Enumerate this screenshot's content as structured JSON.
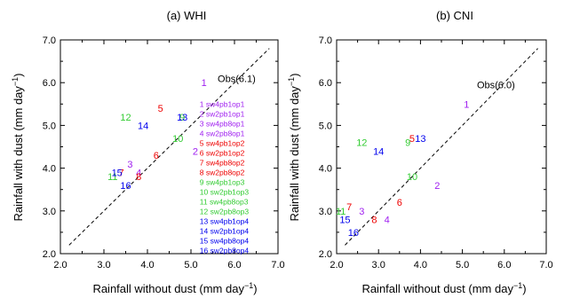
{
  "colors": {
    "purple": "#a020f0",
    "red": "#ee0000",
    "green": "#33cc33",
    "blue": "#0000ee"
  },
  "chart_data": [
    {
      "type": "scatter",
      "title": "(a) WHI",
      "xlabel_main": "Rainfall without dust (mm day",
      "ylabel_main": "Rainfall with dust (mm day",
      "unit_exponent": "−1",
      "unit_close": ")",
      "xlim": [
        2.0,
        7.0
      ],
      "ylim": [
        2.0,
        7.0
      ],
      "xticks": [
        "2.0",
        "3.0",
        "4.0",
        "5.0",
        "6.0",
        "7.0"
      ],
      "yticks": [
        "2.0",
        "3.0",
        "4.0",
        "5.0",
        "6.0",
        "7.0"
      ],
      "obs_label": "Obs(6.1)",
      "obs_line": {
        "x": [
          2.2,
          6.8
        ],
        "y": [
          2.2,
          6.8
        ]
      },
      "legend": [
        {
          "label": "1 sw4pb1op1",
          "color": "purple"
        },
        {
          "label": "2 sw2pb1op1",
          "color": "purple"
        },
        {
          "label": "3 sw4pb8op1",
          "color": "purple"
        },
        {
          "label": "4 sw2pb8op1",
          "color": "purple"
        },
        {
          "label": "5 sw4pb1op2",
          "color": "red"
        },
        {
          "label": "6 sw2pb1op2",
          "color": "red"
        },
        {
          "label": "7 sw4pb8op2",
          "color": "red"
        },
        {
          "label": "8 sw2pb8op2",
          "color": "red"
        },
        {
          "label": "9 sw4pb1op3",
          "color": "green"
        },
        {
          "label": "10 sw2pb1op3",
          "color": "green"
        },
        {
          "label": "11 sw4pb8op3",
          "color": "green"
        },
        {
          "label": "12 sw2pb8op3",
          "color": "green"
        },
        {
          "label": "13 sw4pb1op4",
          "color": "blue"
        },
        {
          "label": "14 sw2pb1op4",
          "color": "blue"
        },
        {
          "label": "15 sw4pb8op4",
          "color": "blue"
        },
        {
          "label": "16 sw2pb8op4",
          "color": "blue"
        }
      ],
      "points": [
        {
          "label": "1",
          "x": 5.3,
          "y": 6.0,
          "color": "purple"
        },
        {
          "label": "2",
          "x": 5.1,
          "y": 4.4,
          "color": "purple"
        },
        {
          "label": "3",
          "x": 3.6,
          "y": 4.1,
          "color": "purple"
        },
        {
          "label": "4",
          "x": 3.8,
          "y": 3.9,
          "color": "purple"
        },
        {
          "label": "5",
          "x": 4.3,
          "y": 5.4,
          "color": "red"
        },
        {
          "label": "6",
          "x": 4.2,
          "y": 4.3,
          "color": "red"
        },
        {
          "label": "7",
          "x": 3.4,
          "y": 3.9,
          "color": "red"
        },
        {
          "label": "8",
          "x": 3.8,
          "y": 3.8,
          "color": "red"
        },
        {
          "label": "9",
          "x": 4.8,
          "y": 5.2,
          "color": "green"
        },
        {
          "label": "10",
          "x": 4.7,
          "y": 4.7,
          "color": "green"
        },
        {
          "label": "11",
          "x": 3.2,
          "y": 3.8,
          "color": "green"
        },
        {
          "label": "12",
          "x": 3.5,
          "y": 5.2,
          "color": "green"
        },
        {
          "label": "13",
          "x": 4.8,
          "y": 5.2,
          "color": "blue"
        },
        {
          "label": "14",
          "x": 3.9,
          "y": 5.0,
          "color": "blue"
        },
        {
          "label": "15",
          "x": 3.3,
          "y": 3.9,
          "color": "blue"
        },
        {
          "label": "16",
          "x": 3.5,
          "y": 3.6,
          "color": "blue"
        }
      ]
    },
    {
      "type": "scatter",
      "title": "(b) CNI",
      "xlabel_main": "Rainfall without dust (mm day",
      "ylabel_main": "Rainfall with dust (mm day",
      "unit_exponent": "−1",
      "unit_close": ")",
      "xlim": [
        2.0,
        7.0
      ],
      "ylim": [
        2.0,
        7.0
      ],
      "xticks": [
        "2.0",
        "3.0",
        "4.0",
        "5.0",
        "6.0",
        "7.0"
      ],
      "yticks": [
        "2.0",
        "3.0",
        "4.0",
        "5.0",
        "6.0",
        "7.0"
      ],
      "obs_label": "Obs(6.0)",
      "obs_line": {
        "x": [
          2.2,
          6.8
        ],
        "y": [
          2.2,
          6.8
        ]
      },
      "points": [
        {
          "label": "1",
          "x": 5.1,
          "y": 5.5,
          "color": "purple"
        },
        {
          "label": "2",
          "x": 4.4,
          "y": 3.6,
          "color": "purple"
        },
        {
          "label": "3",
          "x": 2.6,
          "y": 3.0,
          "color": "purple"
        },
        {
          "label": "4",
          "x": 3.2,
          "y": 2.8,
          "color": "purple"
        },
        {
          "label": "5",
          "x": 3.8,
          "y": 4.7,
          "color": "red"
        },
        {
          "label": "6",
          "x": 3.5,
          "y": 3.2,
          "color": "red"
        },
        {
          "label": "7",
          "x": 2.3,
          "y": 3.1,
          "color": "red"
        },
        {
          "label": "8",
          "x": 2.9,
          "y": 2.8,
          "color": "red"
        },
        {
          "label": "9",
          "x": 3.7,
          "y": 4.6,
          "color": "green"
        },
        {
          "label": "10",
          "x": 3.8,
          "y": 3.8,
          "color": "green"
        },
        {
          "label": "11",
          "x": 2.1,
          "y": 3.0,
          "color": "green"
        },
        {
          "label": "12",
          "x": 2.6,
          "y": 4.6,
          "color": "green"
        },
        {
          "label": "13",
          "x": 4.0,
          "y": 4.7,
          "color": "blue"
        },
        {
          "label": "14",
          "x": 3.0,
          "y": 4.4,
          "color": "blue"
        },
        {
          "label": "15",
          "x": 2.2,
          "y": 2.8,
          "color": "blue"
        },
        {
          "label": "16",
          "x": 2.4,
          "y": 2.5,
          "color": "blue"
        }
      ]
    }
  ]
}
